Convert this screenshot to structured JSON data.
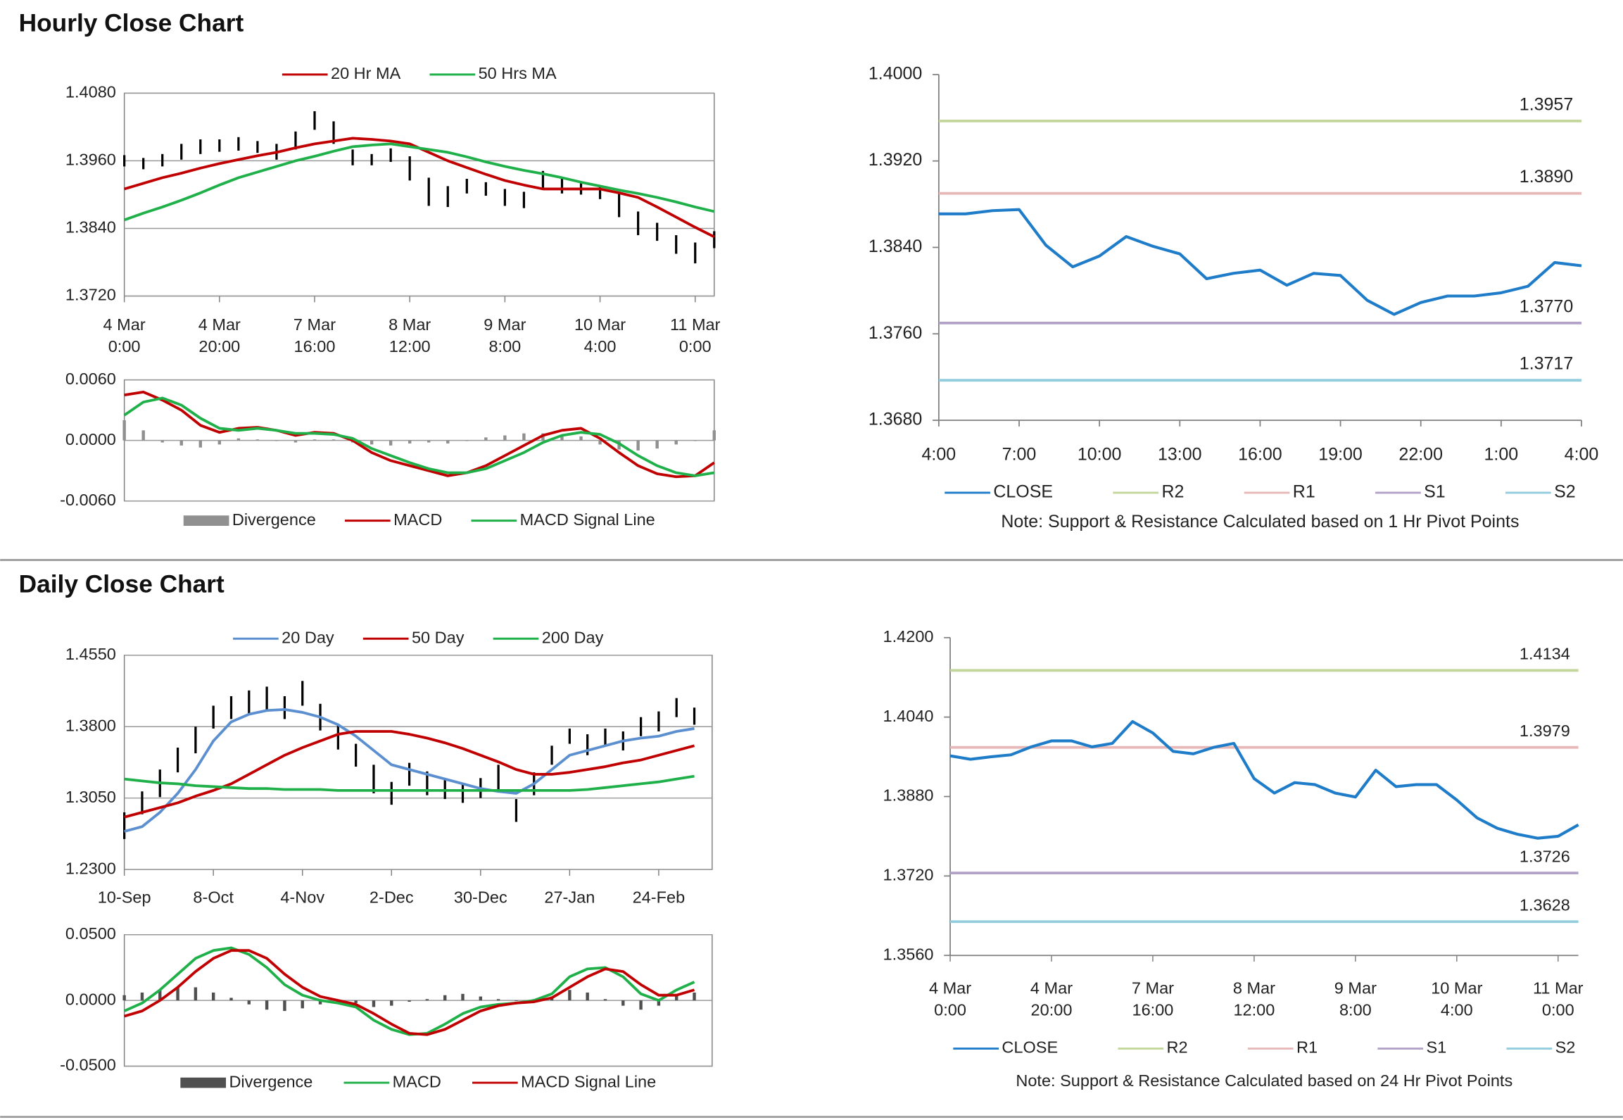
{
  "headings": [
    "Hourly Close Chart",
    "Daily Close Chart"
  ],
  "chart_data": [
    {
      "type": "ohlc",
      "grid": true,
      "frame": true,
      "legend": "top",
      "ylim": [
        1.372,
        1.408
      ],
      "yticks": [
        {
          "value": 1.372,
          "label": "1.3720"
        },
        {
          "value": 1.384,
          "label": "1.3840"
        },
        {
          "value": 1.396,
          "label": "1.3960"
        },
        {
          "value": 1.408,
          "label": "1.4080"
        }
      ],
      "xlim": [
        0,
        31
      ],
      "xticks": [
        {
          "value": 0,
          "label": "4 Mar 0:00"
        },
        {
          "value": 5,
          "label": "4 Mar 20:00"
        },
        {
          "value": 10,
          "label": "7 Mar 16:00"
        },
        {
          "value": 15,
          "label": "8 Mar 12:00"
        },
        {
          "value": 20,
          "label": "9 Mar 8:00"
        },
        {
          "value": 25,
          "label": "10 Mar 4:00"
        },
        {
          "value": 30,
          "label": "11 Mar 0:00"
        }
      ],
      "bars": {
        "color": "#000000",
        "high": [
          1.397,
          1.3965,
          1.3972,
          1.399,
          1.3998,
          1.3998,
          1.4002,
          1.3995,
          1.399,
          1.4012,
          1.4048,
          1.403,
          1.398,
          1.3972,
          1.3982,
          1.3968,
          1.393,
          1.3915,
          1.3928,
          1.3922,
          1.391,
          1.3905,
          1.3942,
          1.393,
          1.392,
          1.3915,
          1.3905,
          1.387,
          1.385,
          1.3828,
          1.3815,
          1.3835
        ],
        "low": [
          1.395,
          1.3945,
          1.395,
          1.3962,
          1.3972,
          1.3976,
          1.3978,
          1.3974,
          1.3962,
          1.398,
          1.4015,
          1.399,
          1.3952,
          1.3952,
          1.3958,
          1.3925,
          1.388,
          1.3878,
          1.3902,
          1.3898,
          1.388,
          1.3876,
          1.391,
          1.3902,
          1.39,
          1.3892,
          1.386,
          1.3828,
          1.3818,
          1.3795,
          1.3778,
          1.3805
        ]
      },
      "series": [
        {
          "name": "20 Hr MA",
          "color": "#c00000",
          "values": [
            1.391,
            1.392,
            1.393,
            1.3938,
            1.3947,
            1.3955,
            1.3962,
            1.3969,
            1.3975,
            1.3983,
            1.399,
            1.3995,
            1.4,
            1.3998,
            1.3995,
            1.399,
            1.3975,
            1.396,
            1.3948,
            1.3936,
            1.3925,
            1.3917,
            1.391,
            1.391,
            1.391,
            1.391,
            1.3903,
            1.3895,
            1.3878,
            1.386,
            1.3842,
            1.3825
          ]
        },
        {
          "name": "50 Hrs MA",
          "color": "#1fb04a",
          "values": [
            1.3855,
            1.3867,
            1.3878,
            1.389,
            1.3903,
            1.3917,
            1.393,
            1.394,
            1.395,
            1.396,
            1.3968,
            1.3977,
            1.3985,
            1.3988,
            1.399,
            1.3985,
            1.398,
            1.3975,
            1.3967,
            1.3958,
            1.395,
            1.3943,
            1.3937,
            1.393,
            1.3922,
            1.3915,
            1.3908,
            1.3902,
            1.3895,
            1.3887,
            1.3878,
            1.387
          ]
        }
      ]
    },
    {
      "type": "macd",
      "grid": true,
      "frame": true,
      "legend": "bottom",
      "ylim": [
        -0.006,
        0.006
      ],
      "yticks": [
        {
          "value": -0.006,
          "label": "-0.0060"
        },
        {
          "value": 0,
          "label": "0.0000"
        },
        {
          "value": 0.006,
          "label": "0.0060"
        }
      ],
      "xlim": [
        0,
        31
      ],
      "series": [
        {
          "name": "Divergence",
          "color": "#909090",
          "kind": "bar",
          "values": [
            0.002,
            0.001,
            -0.0002,
            -0.0005,
            -0.0007,
            -0.0004,
            0.0002,
            0.0001,
            0.0,
            -0.0002,
            0.0001,
            0.0001,
            -0.0002,
            -0.0004,
            -0.0005,
            -0.0003,
            -0.0002,
            -0.0003,
            0.0,
            0.0003,
            0.0005,
            0.0007,
            0.0007,
            0.0005,
            0.0004,
            -0.0004,
            -0.0009,
            -0.001,
            -0.0008,
            -0.0004,
            0.0,
            0.001
          ]
        },
        {
          "name": "MACD",
          "color": "#c00000",
          "values": [
            0.0045,
            0.0048,
            0.004,
            0.003,
            0.0015,
            0.0008,
            0.0012,
            0.0013,
            0.001,
            0.0005,
            0.0008,
            0.0007,
            0.0,
            -0.0012,
            -0.002,
            -0.0025,
            -0.003,
            -0.0035,
            -0.0032,
            -0.0025,
            -0.0015,
            -0.0005,
            0.0005,
            0.001,
            0.0012,
            0.0002,
            -0.0012,
            -0.0025,
            -0.0033,
            -0.0036,
            -0.0035,
            -0.0022
          ]
        },
        {
          "name": "MACD  Signal Line",
          "color": "#1fb04a",
          "values": [
            0.0025,
            0.0038,
            0.0042,
            0.0035,
            0.0022,
            0.0012,
            0.001,
            0.0012,
            0.001,
            0.0007,
            0.0007,
            0.0006,
            0.0002,
            -0.0008,
            -0.0015,
            -0.0022,
            -0.0028,
            -0.0032,
            -0.0032,
            -0.0028,
            -0.002,
            -0.0012,
            -0.0002,
            0.0005,
            0.0008,
            0.0006,
            -0.0003,
            -0.0015,
            -0.0025,
            -0.0032,
            -0.0035,
            -0.0032
          ]
        }
      ]
    },
    {
      "type": "line",
      "grid": false,
      "frame": false,
      "legend": "bottom",
      "ylim": [
        1.368,
        1.4
      ],
      "yticks": [
        {
          "value": 1.368,
          "label": "1.3680"
        },
        {
          "value": 1.376,
          "label": "1.3760"
        },
        {
          "value": 1.384,
          "label": "1.3840"
        },
        {
          "value": 1.392,
          "label": "1.3920"
        },
        {
          "value": 1.4,
          "label": "1.4000"
        }
      ],
      "categories": [
        "4:00",
        null,
        null,
        "7:00",
        null,
        null,
        "10:00",
        null,
        null,
        "13:00",
        null,
        null,
        "16:00",
        null,
        null,
        "19:00",
        null,
        null,
        "22:00",
        null,
        null,
        "1:00",
        null,
        null,
        "4:00"
      ],
      "series": [
        {
          "name": "CLOSE",
          "color": "#1f7cc8",
          "values": [
            1.3871,
            1.3871,
            1.3874,
            1.3875,
            1.3842,
            1.3822,
            1.3832,
            1.385,
            1.3841,
            1.3834,
            1.3811,
            1.3816,
            1.3819,
            1.3805,
            1.3816,
            1.3814,
            1.3791,
            1.3778,
            1.3789,
            1.3795,
            1.3795,
            1.3798,
            1.3804,
            1.3826,
            1.3823
          ]
        }
      ],
      "levels": [
        {
          "name": "R2",
          "color": "#c3d69b",
          "value": 1.3957,
          "label": "1.3957"
        },
        {
          "name": "R1",
          "color": "#e6b9b8",
          "value": 1.389,
          "label": "1.3890"
        },
        {
          "name": "S1",
          "color": "#b3a2c7",
          "value": 1.377,
          "label": "1.3770"
        },
        {
          "name": "S2",
          "color": "#93cddd",
          "value": 1.3717,
          "label": "1.3717"
        }
      ],
      "note": "Note: Support & Resistance Calculated based on 1 Hr Pivot Points"
    },
    {
      "type": "ohlc",
      "grid": true,
      "frame": true,
      "legend": "top",
      "ylim": [
        1.23,
        1.455
      ],
      "yticks": [
        {
          "value": 1.23,
          "label": "1.2300"
        },
        {
          "value": 1.305,
          "label": "1.3050"
        },
        {
          "value": 1.38,
          "label": "1.3800"
        },
        {
          "value": 1.455,
          "label": "1.4550"
        }
      ],
      "xlim": [
        0,
        33
      ],
      "xticks": [
        {
          "value": 0,
          "label": "10-Sep"
        },
        {
          "value": 5,
          "label": "8-Oct"
        },
        {
          "value": 10,
          "label": "4-Nov"
        },
        {
          "value": 15,
          "label": "2-Dec"
        },
        {
          "value": 20,
          "label": "30-Dec"
        },
        {
          "value": 25,
          "label": "27-Jan"
        },
        {
          "value": 30,
          "label": "24-Feb"
        }
      ],
      "bars": {
        "color": "#000000",
        "high": [
          1.29,
          1.312,
          1.335,
          1.358,
          1.38,
          1.402,
          1.412,
          1.418,
          1.422,
          1.412,
          1.428,
          1.404,
          1.383,
          1.362,
          1.34,
          1.322,
          1.342,
          1.333,
          1.326,
          1.32,
          1.326,
          1.34,
          1.304,
          1.332,
          1.36,
          1.378,
          1.372,
          1.378,
          1.375,
          1.39,
          1.396,
          1.41,
          1.4
        ],
        "low": [
          1.262,
          1.288,
          1.306,
          1.332,
          1.352,
          1.378,
          1.388,
          1.392,
          1.398,
          1.388,
          1.402,
          1.376,
          1.356,
          1.338,
          1.31,
          1.298,
          1.318,
          1.308,
          1.304,
          1.3,
          1.305,
          1.312,
          1.28,
          1.308,
          1.34,
          1.362,
          1.35,
          1.36,
          1.355,
          1.37,
          1.375,
          1.39,
          1.382
        ]
      },
      "series": [
        {
          "name": "20 Day",
          "color": "#5b8fd0",
          "values": [
            1.27,
            1.275,
            1.29,
            1.31,
            1.335,
            1.365,
            1.385,
            1.393,
            1.397,
            1.398,
            1.395,
            1.39,
            1.382,
            1.37,
            1.355,
            1.34,
            1.335,
            1.33,
            1.325,
            1.32,
            1.315,
            1.312,
            1.31,
            1.32,
            1.335,
            1.35,
            1.355,
            1.36,
            1.365,
            1.368,
            1.37,
            1.375,
            1.378
          ]
        },
        {
          "name": "50 Day",
          "color": "#c00000",
          "values": [
            1.285,
            1.29,
            1.295,
            1.3,
            1.307,
            1.313,
            1.32,
            1.33,
            1.34,
            1.35,
            1.358,
            1.365,
            1.372,
            1.375,
            1.375,
            1.375,
            1.372,
            1.368,
            1.363,
            1.357,
            1.35,
            1.343,
            1.335,
            1.33,
            1.33,
            1.332,
            1.335,
            1.338,
            1.342,
            1.345,
            1.35,
            1.355,
            1.36
          ]
        },
        {
          "name": "200 Day",
          "color": "#1fb04a",
          "values": [
            1.325,
            1.323,
            1.321,
            1.32,
            1.318,
            1.317,
            1.316,
            1.315,
            1.315,
            1.314,
            1.314,
            1.314,
            1.313,
            1.313,
            1.313,
            1.313,
            1.313,
            1.313,
            1.313,
            1.313,
            1.313,
            1.313,
            1.313,
            1.313,
            1.313,
            1.313,
            1.314,
            1.316,
            1.318,
            1.32,
            1.322,
            1.325,
            1.328
          ]
        }
      ]
    },
    {
      "type": "macd",
      "grid": true,
      "frame": true,
      "legend": "bottom",
      "ylim": [
        -0.05,
        0.05
      ],
      "yticks": [
        {
          "value": -0.05,
          "label": "-0.0500"
        },
        {
          "value": 0,
          "label": "0.0000"
        },
        {
          "value": 0.05,
          "label": "0.0500"
        }
      ],
      "xlim": [
        0,
        33
      ],
      "series": [
        {
          "name": "Divergence",
          "color": "#505050",
          "kind": "bar",
          "values": [
            0.004,
            0.006,
            0.008,
            0.01,
            0.01,
            0.006,
            0.002,
            -0.003,
            -0.007,
            -0.008,
            -0.006,
            -0.003,
            -0.002,
            -0.002,
            -0.005,
            -0.004,
            -0.001,
            0.001,
            0.004,
            0.005,
            0.003,
            0.001,
            0.0,
            0.001,
            0.003,
            0.008,
            0.006,
            0.001,
            -0.004,
            -0.007,
            -0.004,
            0.004,
            0.006
          ]
        },
        {
          "name": "MACD",
          "color": "#1fb04a",
          "values": [
            -0.008,
            -0.002,
            0.008,
            0.02,
            0.032,
            0.038,
            0.04,
            0.035,
            0.025,
            0.012,
            0.004,
            0.0,
            -0.002,
            -0.005,
            -0.015,
            -0.022,
            -0.026,
            -0.025,
            -0.018,
            -0.01,
            -0.005,
            -0.003,
            -0.002,
            0.0,
            0.005,
            0.018,
            0.024,
            0.025,
            0.018,
            0.005,
            0.0,
            0.008,
            0.014
          ]
        },
        {
          "name": "MACD  Signal Line",
          "color": "#c00000",
          "values": [
            -0.012,
            -0.008,
            0.0,
            0.01,
            0.022,
            0.032,
            0.038,
            0.038,
            0.032,
            0.02,
            0.01,
            0.003,
            0.0,
            -0.003,
            -0.01,
            -0.018,
            -0.025,
            -0.026,
            -0.022,
            -0.015,
            -0.008,
            -0.004,
            -0.002,
            -0.001,
            0.002,
            0.01,
            0.018,
            0.024,
            0.022,
            0.012,
            0.004,
            0.004,
            0.008
          ]
        }
      ]
    },
    {
      "type": "line",
      "grid": false,
      "frame": false,
      "legend": "bottom",
      "ylim": [
        1.356,
        1.42
      ],
      "yticks": [
        {
          "value": 1.356,
          "label": "1.3560"
        },
        {
          "value": 1.372,
          "label": "1.3720"
        },
        {
          "value": 1.388,
          "label": "1.3880"
        },
        {
          "value": 1.404,
          "label": "1.4040"
        },
        {
          "value": 1.42,
          "label": "1.4200"
        }
      ],
      "xlim": [
        0,
        31
      ],
      "xticks": [
        {
          "value": 0,
          "label": "4 Mar 0:00"
        },
        {
          "value": 5,
          "label": "4 Mar 20:00"
        },
        {
          "value": 10,
          "label": "7 Mar 16:00"
        },
        {
          "value": 15,
          "label": "8 Mar 12:00"
        },
        {
          "value": 20,
          "label": "9 Mar 8:00"
        },
        {
          "value": 25,
          "label": "10 Mar 4:00"
        },
        {
          "value": 30,
          "label": "11 Mar 0:00"
        }
      ],
      "series": [
        {
          "name": "CLOSE",
          "color": "#1f7cc8",
          "values": [
            1.3962,
            1.3955,
            1.396,
            1.3964,
            1.398,
            1.3992,
            1.3992,
            1.398,
            1.3987,
            1.4031,
            1.4008,
            1.3971,
            1.3966,
            1.3979,
            1.3987,
            1.3916,
            1.3887,
            1.3908,
            1.3904,
            1.3887,
            1.3879,
            1.3933,
            1.39,
            1.3904,
            1.3904,
            1.3873,
            1.3837,
            1.3816,
            1.3804,
            1.3796,
            1.38,
            1.3823
          ]
        }
      ],
      "levels": [
        {
          "name": "R2",
          "color": "#c3d69b",
          "value": 1.4134,
          "label": "1.4134"
        },
        {
          "name": "R1",
          "color": "#e6b9b8",
          "value": 1.3979,
          "label": "1.3979"
        },
        {
          "name": "S1",
          "color": "#b3a2c7",
          "value": 1.3726,
          "label": "1.3726"
        },
        {
          "name": "S2",
          "color": "#93cddd",
          "value": 1.3628,
          "label": "1.3628"
        }
      ],
      "note": "Note: Support & Resistance Calculated based on 24 Hr Pivot Points"
    }
  ]
}
